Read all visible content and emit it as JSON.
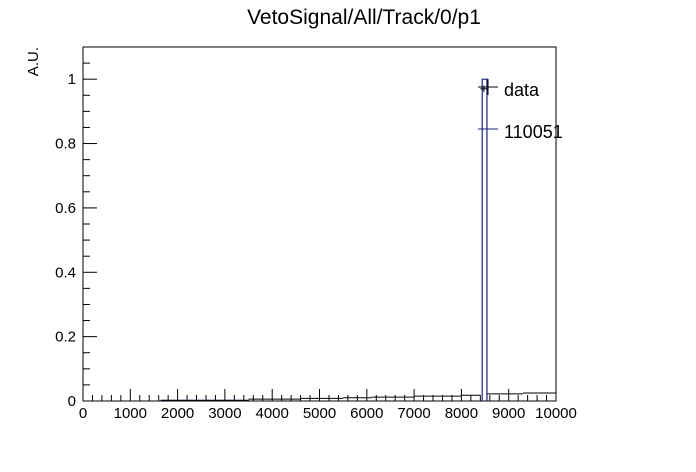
{
  "chart_data": {
    "type": "bar",
    "title": "VetoSignal/All/Track/0/p1",
    "xlabel": "",
    "ylabel": "A.U.",
    "xlim": [
      0,
      10000
    ],
    "ylim": [
      0,
      1.1
    ],
    "xticks": [
      0,
      1000,
      2000,
      3000,
      4000,
      5000,
      6000,
      7000,
      8000,
      9000,
      10000
    ],
    "yticks": [
      0,
      0.2,
      0.4,
      0.6,
      0.8,
      1
    ],
    "ytick_labels": [
      "0",
      "0.2",
      "0.4",
      "0.6",
      "0.8",
      "1"
    ],
    "grid": false,
    "legend_position": "top-right",
    "series": [
      {
        "name": "data",
        "style": "points-with-error-bars",
        "color": "#000000",
        "points": [
          {
            "x0": 1650,
            "x1": 3500,
            "y": 0.002
          },
          {
            "x0": 3500,
            "x1": 4600,
            "y": 0.006
          },
          {
            "x0": 4600,
            "x1": 5500,
            "y": 0.008
          },
          {
            "x0": 5500,
            "x1": 6100,
            "y": 0.01
          },
          {
            "x0": 6100,
            "x1": 7000,
            "y": 0.012
          },
          {
            "x0": 7000,
            "x1": 8000,
            "y": 0.015
          },
          {
            "x0": 8000,
            "x1": 8400,
            "y": 0.018
          },
          {
            "x0": 8400,
            "x1": 8550,
            "y": 0.97
          },
          {
            "x0": 8550,
            "x1": 9300,
            "y": 0.022
          },
          {
            "x0": 9300,
            "x1": 10000,
            "y": 0.025
          }
        ]
      },
      {
        "name": "110051",
        "style": "histogram",
        "color": "#1a237e",
        "bins": [
          {
            "x0": 1650,
            "x1": 3500,
            "y": 0.002
          },
          {
            "x0": 8440,
            "x1": 8540,
            "y": 1.0
          }
        ]
      }
    ]
  }
}
